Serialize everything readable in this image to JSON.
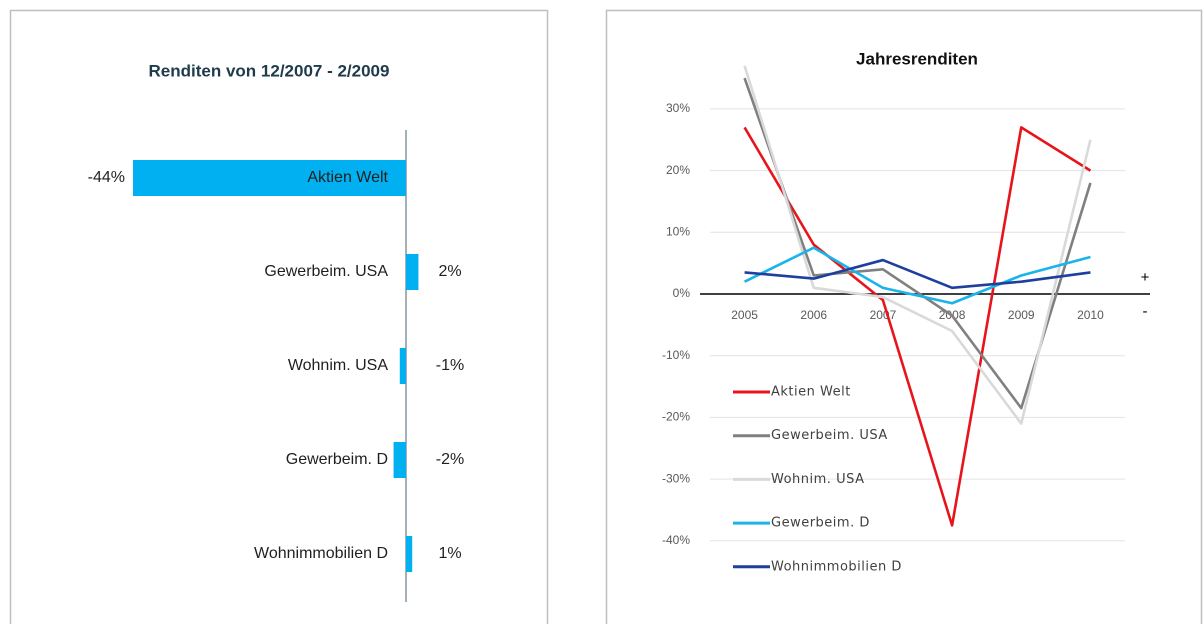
{
  "chart_data": [
    {
      "type": "hbar",
      "title": "Renditen von 12/2007 - 2/2009",
      "categories": [
        "Aktien Welt",
        "Gewerbeim. USA",
        "Wohnim. USA",
        "Gewerbeim. D",
        "Wohnimmobilien D"
      ],
      "values": [
        -44,
        2,
        -1,
        -2,
        1
      ],
      "value_labels": [
        "-44%",
        "2%",
        "-1%",
        "-2%",
        "1%"
      ],
      "color": "#00b0f0"
    },
    {
      "type": "line",
      "title": "Jahresrenditen",
      "categories": [
        "2005",
        "2006",
        "2007",
        "2008",
        "2009",
        "2010"
      ],
      "ylim": [
        -50,
        40
      ],
      "yticks": [
        {
          "value": -40,
          "label": "-40%"
        },
        {
          "value": -30,
          "label": "-30%"
        },
        {
          "value": -20,
          "label": "-20%"
        },
        {
          "value": -10,
          "label": "-10%"
        },
        {
          "value": 0,
          "label": "0%"
        },
        {
          "value": 10,
          "label": "10%"
        },
        {
          "value": 20,
          "label": "20%"
        },
        {
          "value": 30,
          "label": "30%"
        }
      ],
      "grid": true,
      "annotations": [
        "+",
        "-"
      ],
      "series": [
        {
          "name": "Aktien Welt",
          "color": "#e8141b",
          "values": [
            27,
            8,
            -1,
            -37.5,
            27,
            20
          ]
        },
        {
          "name": "Gewerbeim. USA",
          "color": "#808080",
          "values": [
            35,
            3,
            4,
            -3.5,
            -18.5,
            18
          ]
        },
        {
          "name": "Wohnim. USA",
          "color": "#d9d9d9",
          "values": [
            37,
            1,
            -0.5,
            -6,
            -21,
            25
          ]
        },
        {
          "name": "Gewerbeim. D",
          "color": "#1ab4ea",
          "values": [
            2,
            7.5,
            1,
            -1.5,
            3,
            6
          ]
        },
        {
          "name": "Wohnimmobilien D",
          "color": "#1f3f9e",
          "values": [
            3.5,
            2.5,
            5.5,
            1,
            2,
            3.5
          ]
        }
      ]
    }
  ]
}
